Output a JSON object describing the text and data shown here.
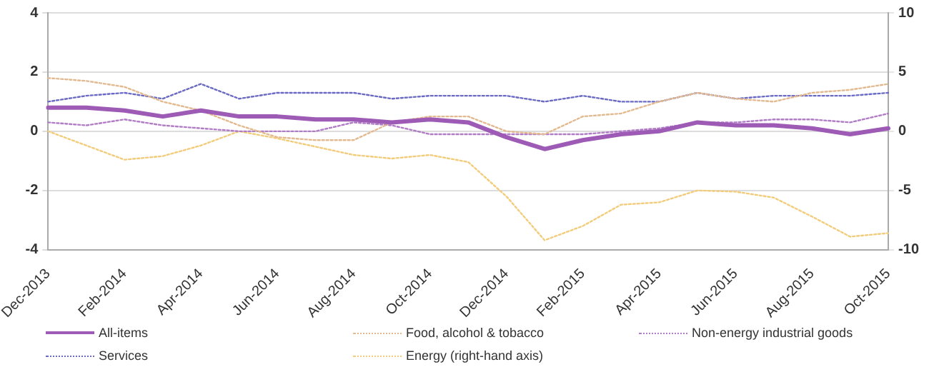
{
  "chart_data": {
    "type": "line",
    "categories": [
      "Dec-2013",
      null,
      "Feb-2014",
      null,
      "Apr-2014",
      null,
      "Jun-2014",
      null,
      "Aug-2014",
      null,
      "Oct-2014",
      null,
      "Dec-2014",
      null,
      "Feb-2015",
      null,
      "Apr-2015",
      null,
      "Jun-2015",
      null,
      "Aug-2015",
      null,
      "Oct-2015"
    ],
    "ylim": [
      -4,
      4
    ],
    "yticks": [
      -4,
      -2,
      0,
      2,
      4
    ],
    "y2lim": [
      -10,
      10
    ],
    "y2ticks": [
      -10,
      -5,
      0,
      5,
      10
    ],
    "grid": "y",
    "legend": "bottom",
    "marker": "none",
    "series": [
      {
        "name": "All-items",
        "color": "#9e5bb5",
        "line_style": "solid",
        "values": [
          0.8,
          0.8,
          0.7,
          0.5,
          0.7,
          0.5,
          0.5,
          0.4,
          0.4,
          0.3,
          0.4,
          0.3,
          -0.2,
          -0.6,
          -0.3,
          -0.1,
          0.0,
          0.3,
          0.2,
          0.2,
          0.1,
          -0.1,
          0.1
        ]
      },
      {
        "name": "Food, alcohol & tobacco",
        "color": "#e3b98f",
        "line_style": "dotted",
        "values": [
          1.8,
          1.7,
          1.5,
          1.0,
          0.7,
          0.2,
          -0.2,
          -0.3,
          -0.3,
          0.3,
          0.5,
          0.5,
          0.0,
          -0.1,
          0.5,
          0.6,
          1.0,
          1.3,
          1.1,
          1.0,
          1.3,
          1.4,
          1.6
        ]
      },
      {
        "name": "Non-energy industrial goods",
        "color": "#b07cc6",
        "line_style": "dotted",
        "values": [
          0.3,
          0.2,
          0.4,
          0.2,
          0.1,
          0.0,
          0.0,
          0.0,
          0.3,
          0.2,
          -0.1,
          -0.1,
          -0.1,
          -0.1,
          -0.1,
          0.0,
          0.1,
          0.3,
          0.3,
          0.4,
          0.4,
          0.3,
          0.6
        ]
      },
      {
        "name": "Services",
        "color": "#6a6ac4",
        "line_style": "dotted",
        "values": [
          1.0,
          1.2,
          1.3,
          1.1,
          1.6,
          1.1,
          1.3,
          1.3,
          1.3,
          1.1,
          1.2,
          1.2,
          1.2,
          1.0,
          1.2,
          1.0,
          1.0,
          1.3,
          1.1,
          1.2,
          1.2,
          1.2,
          1.3
        ]
      },
      {
        "name": "Energy (right-hand axis)",
        "color": "#f2cc7a",
        "line_style": "dotted",
        "axis": "y2",
        "values": [
          0.0,
          -1.2,
          -2.4,
          -2.1,
          -1.2,
          0.0,
          -0.6,
          -1.3,
          -2.0,
          -2.3,
          -2.0,
          -2.6,
          -5.5,
          -9.2,
          -8.0,
          -6.2,
          -6.0,
          -5.0,
          -5.1,
          -5.6,
          -7.2,
          -8.9,
          -8.6
        ]
      }
    ]
  }
}
